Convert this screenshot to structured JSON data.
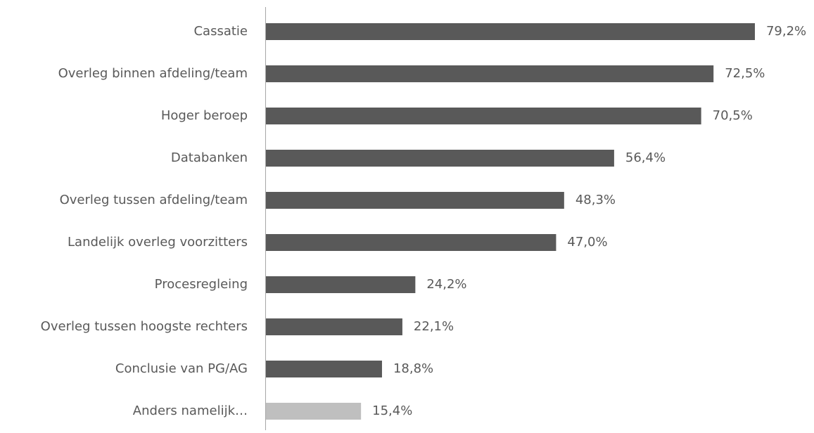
{
  "chart_data": {
    "type": "hbar",
    "categories": [
      "Cassatie",
      "Overleg binnen afdeling/team",
      "Hoger beroep",
      "Databanken",
      "Overleg tussen afdeling/team",
      "Landelijk overleg voorzitters",
      "Procesregleing",
      "Overleg tussen hoogste rechters",
      "Conclusie van PG/AG",
      "Anders namelijk…"
    ],
    "values": [
      79.2,
      72.5,
      70.5,
      56.4,
      48.3,
      47.0,
      24.2,
      22.1,
      18.8,
      15.4
    ],
    "value_labels": [
      "79,2%",
      "72,5%",
      "70,5%",
      "56,4%",
      "48,3%",
      "47,0%",
      "24,2%",
      "22,1%",
      "18,8%",
      "15,4%"
    ],
    "colors": [
      "#595959",
      "#595959",
      "#595959",
      "#595959",
      "#595959",
      "#595959",
      "#595959",
      "#595959",
      "#595959",
      "#bfbfbf"
    ]
  }
}
